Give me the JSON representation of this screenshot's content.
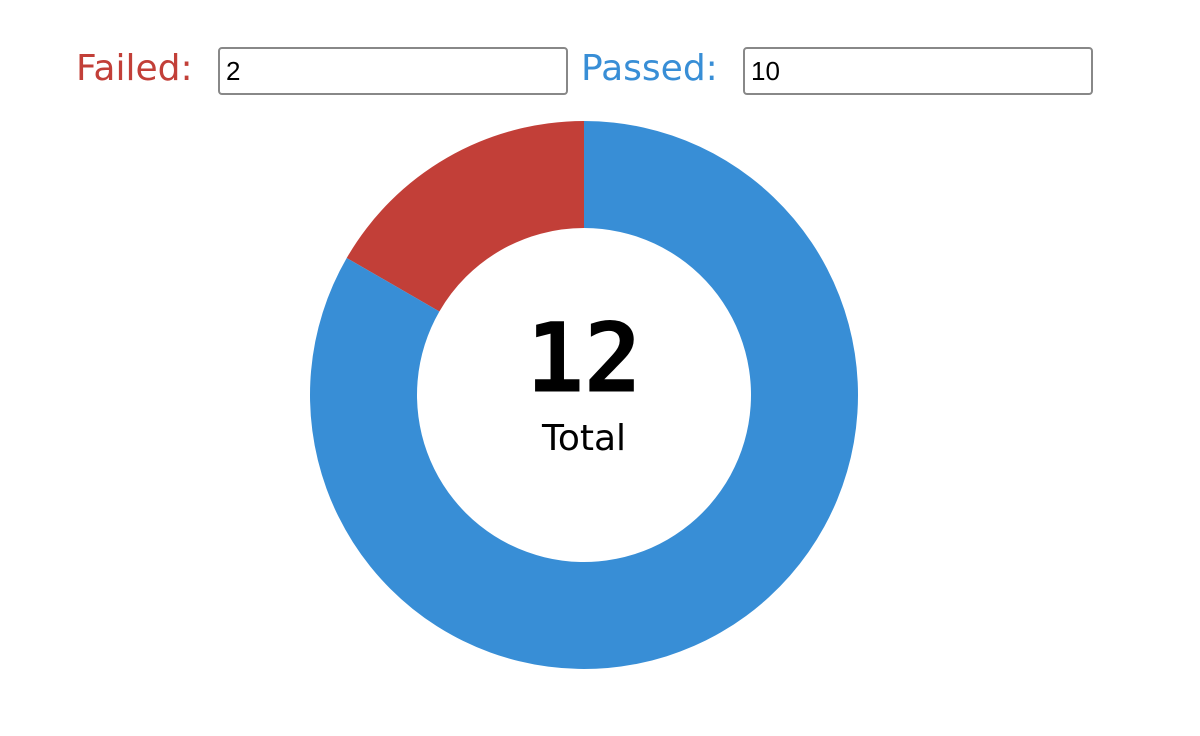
{
  "chart_data": {
    "type": "donut",
    "categories": [
      "Failed:",
      "Passed:"
    ],
    "values": [
      2,
      10
    ],
    "colors": [
      "#c23f38",
      "#388ed6"
    ],
    "center_value": 12,
    "center_label": "Total"
  }
}
